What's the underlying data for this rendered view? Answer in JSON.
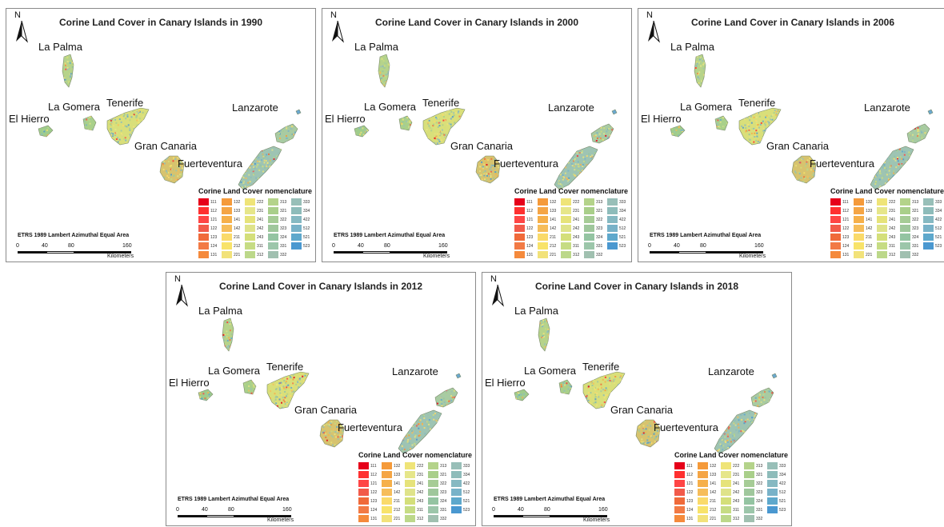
{
  "panels": [
    {
      "title": "Corine Land Cover in Canary Islands in 1990"
    },
    {
      "title": "Corine Land Cover in Canary Islands in 2000"
    },
    {
      "title": "Corine Land Cover in Canary Islands in 2006"
    },
    {
      "title": "Corine Land Cover in Canary Islands in 2012"
    },
    {
      "title": "Corine Land Cover in Canary Islands in 2018"
    }
  ],
  "north_label": "N",
  "island_labels": {
    "la_palma": "La Palma",
    "la_gomera": "La Gomera",
    "tenerife": "Tenerife",
    "el_hierro": "El Hierro",
    "gran_canaria": "Gran Canaria",
    "lanzarote": "Lanzarote",
    "fuerteventura": "Fuerteventura"
  },
  "legend": {
    "title": "Corine Land Cover nomenclature",
    "columns": [
      [
        {
          "code": "111",
          "color": "#e6001a"
        },
        {
          "code": "112",
          "color": "#ff3030"
        },
        {
          "code": "121",
          "color": "#ff4545"
        },
        {
          "code": "122",
          "color": "#f25a4a"
        },
        {
          "code": "123",
          "color": "#f06a3a"
        },
        {
          "code": "124",
          "color": "#f27a45"
        },
        {
          "code": "131",
          "color": "#f58a3c"
        }
      ],
      [
        {
          "code": "132",
          "color": "#f59a3a"
        },
        {
          "code": "133",
          "color": "#f5a545"
        },
        {
          "code": "141",
          "color": "#f6b04a"
        },
        {
          "code": "142",
          "color": "#f6bd5a"
        },
        {
          "code": "211",
          "color": "#fada6a"
        },
        {
          "code": "212",
          "color": "#f8e36a"
        },
        {
          "code": "221",
          "color": "#f2e27a"
        }
      ],
      [
        {
          "code": "222",
          "color": "#efe478"
        },
        {
          "code": "231",
          "color": "#e6e68a"
        },
        {
          "code": "241",
          "color": "#e6e37a"
        },
        {
          "code": "242",
          "color": "#dfe38a"
        },
        {
          "code": "243",
          "color": "#d4df7a"
        },
        {
          "code": "311",
          "color": "#c6dc84"
        },
        {
          "code": "312",
          "color": "#bcd88a"
        }
      ],
      [
        {
          "code": "313",
          "color": "#b4d38a"
        },
        {
          "code": "321",
          "color": "#a9cf8a"
        },
        {
          "code": "322",
          "color": "#a6cc96"
        },
        {
          "code": "323",
          "color": "#9fc79c"
        },
        {
          "code": "324",
          "color": "#94c4a2"
        },
        {
          "code": "331",
          "color": "#9cc6aa"
        },
        {
          "code": "332",
          "color": "#a0c0b0"
        }
      ],
      [
        {
          "code": "333",
          "color": "#98bfb8"
        },
        {
          "code": "334",
          "color": "#8ebcba"
        },
        {
          "code": "422",
          "color": "#86b9c2"
        },
        {
          "code": "512",
          "color": "#78b2c8"
        },
        {
          "code": "521",
          "color": "#5ea8cc"
        },
        {
          "code": "523",
          "color": "#4a98d0"
        }
      ]
    ]
  },
  "projection": "ETRS 1989 Lambert Azimuthal Equal Area",
  "scale": {
    "ticks": [
      "0",
      "40",
      "80",
      "160"
    ],
    "unit": "Kilometers"
  }
}
